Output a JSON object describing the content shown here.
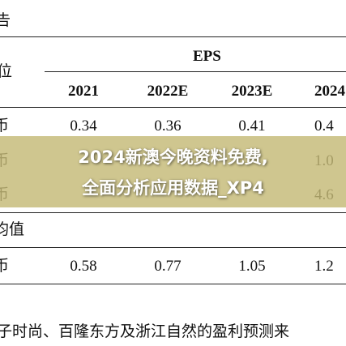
{
  "document": {
    "corner_label": "告",
    "unit_label": "位",
    "table": {
      "group_header": "EPS",
      "columns": [
        "2021",
        "2022E",
        "2023E",
        "2024"
      ],
      "rows": [
        {
          "label": "币",
          "cells": [
            "0.34",
            "0.36",
            "0.41",
            "0.4"
          ]
        },
        {
          "label": "币",
          "cells": [
            "",
            "",
            "",
            "1.0"
          ]
        },
        {
          "label": "币",
          "cells": [
            "",
            "",
            "",
            "4.6"
          ]
        }
      ],
      "section_label": "均值",
      "section_rows": [
        {
          "label": "币",
          "cells": [
            "0.58",
            "0.77",
            "1.05",
            "1.2"
          ]
        }
      ]
    },
    "banner": [
      "2024新澳今晚资料免费,",
      "全面分析应用数据_XP4"
    ],
    "footnote": "子时尚、百隆东方及浙江自然的盈利预测来"
  }
}
